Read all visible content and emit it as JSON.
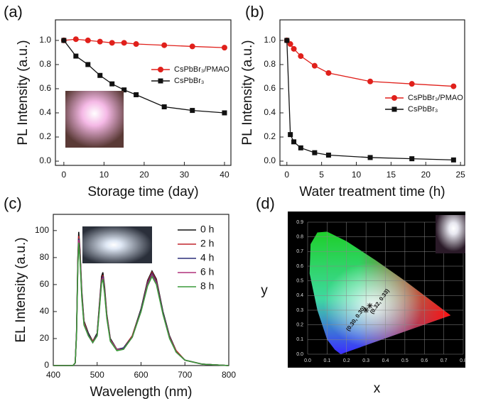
{
  "chart_data": [
    {
      "type": "line",
      "panel_label": "(a)",
      "xlabel": "Storage time (day)",
      "ylabel": "PL Intensity (a.u.)",
      "x": [
        0,
        3,
        6,
        9,
        12,
        15,
        18,
        25,
        32,
        40
      ],
      "series": [
        {
          "name": "CsPbBr₃/PMAO",
          "color": "#e0201b",
          "marker": "circle",
          "values": [
            1.0,
            1.01,
            1.0,
            0.99,
            0.98,
            0.98,
            0.97,
            0.96,
            0.95,
            0.94
          ]
        },
        {
          "name": "CsPbBr₃",
          "color": "#111111",
          "marker": "square",
          "values": [
            1.0,
            0.87,
            0.8,
            0.71,
            0.64,
            0.59,
            0.55,
            0.45,
            0.42,
            0.4
          ]
        }
      ],
      "xlim": [
        -2.1,
        41.6
      ],
      "ylim": [
        -0.035,
        1.17
      ],
      "xticks": [
        0,
        10,
        20,
        30,
        40
      ],
      "yticks": [
        {
          "value": 0,
          "label": "0.0"
        },
        0.2,
        0.4,
        0.6,
        0.8,
        {
          "value": 1,
          "label": "1.0"
        }
      ],
      "legend": "center right",
      "grid": false
    },
    {
      "type": "line",
      "panel_label": "(b)",
      "xlabel": "Water treatment time (h)",
      "ylabel": "PL Intensity (a.u.)",
      "x": [
        0,
        0.5,
        1,
        2,
        4,
        6,
        12,
        18,
        24
      ],
      "series": [
        {
          "name": "CsPbBr₃/PMAO",
          "color": "#e0201b",
          "marker": "circle",
          "values": [
            1.0,
            0.97,
            0.93,
            0.87,
            0.79,
            0.73,
            0.66,
            0.64,
            0.62
          ]
        },
        {
          "name": "CsPbBr₃",
          "color": "#111111",
          "marker": "square",
          "values": [
            1.0,
            0.22,
            0.16,
            0.11,
            0.07,
            0.05,
            0.03,
            0.02,
            0.01
          ]
        }
      ],
      "xlim": [
        -1,
        25.6
      ],
      "ylim": [
        -0.035,
        1.17
      ],
      "xticks": [
        0,
        5,
        10,
        15,
        20,
        25
      ],
      "yticks": [
        {
          "value": 0,
          "label": "0.0"
        },
        0.2,
        0.4,
        0.6,
        0.8,
        {
          "value": 1,
          "label": "1.0"
        }
      ],
      "legend": "lower right",
      "grid": false
    },
    {
      "type": "line",
      "panel_label": "(c)",
      "xlabel": "Wavelength (nm)",
      "ylabel": "EL Intensity (a.u.)",
      "x": [
        400,
        445,
        450,
        453,
        456,
        458,
        461,
        465,
        470,
        480,
        490,
        500,
        505,
        510,
        513,
        517,
        522,
        530,
        545,
        560,
        580,
        600,
        615,
        625,
        635,
        650,
        665,
        680,
        700,
        740,
        800
      ],
      "series": [
        {
          "name": "0 h",
          "color": "#111111",
          "values": [
            0,
            0,
            2,
            25,
            80,
            99,
            85,
            55,
            33,
            24,
            18,
            24,
            45,
            66,
            69,
            58,
            38,
            20,
            12,
            13,
            22,
            42,
            63,
            70,
            64,
            40,
            22,
            11,
            4,
            1,
            0
          ]
        },
        {
          "name": "2 h",
          "color": "#c0262d",
          "values": [
            0,
            0,
            2,
            24,
            78,
            96,
            83,
            53,
            32,
            23,
            18,
            23,
            44,
            64,
            67,
            56,
            37,
            19,
            12,
            13,
            22,
            41,
            62,
            69,
            63,
            39,
            21,
            11,
            4,
            1,
            0
          ]
        },
        {
          "name": "4 h",
          "color": "#2b2f7a",
          "values": [
            0,
            0,
            2,
            24,
            76,
            94,
            81,
            52,
            31,
            23,
            17,
            23,
            43,
            63,
            66,
            55,
            36,
            19,
            12,
            13,
            21,
            41,
            61,
            68,
            62,
            39,
            21,
            10,
            4,
            1,
            0
          ]
        },
        {
          "name": "6 h",
          "color": "#b0307a",
          "values": [
            0,
            0,
            2,
            23,
            75,
            93,
            80,
            51,
            31,
            22,
            17,
            22,
            42,
            62,
            65,
            54,
            36,
            19,
            12,
            12,
            21,
            40,
            60,
            67,
            61,
            38,
            21,
            10,
            4,
            1,
            0
          ]
        },
        {
          "name": "8 h",
          "color": "#3a9a3a",
          "values": [
            0,
            0,
            2,
            23,
            73,
            91,
            78,
            50,
            30,
            22,
            17,
            22,
            41,
            61,
            64,
            53,
            35,
            18,
            11,
            12,
            21,
            40,
            59,
            66,
            60,
            38,
            20,
            10,
            4,
            1,
            0
          ]
        }
      ],
      "xlim": [
        400,
        800
      ],
      "ylim": [
        0,
        112
      ],
      "xticks": [
        400,
        500,
        600,
        700,
        800
      ],
      "yticks": [
        0,
        20,
        40,
        60,
        80,
        100
      ],
      "legend": "upper right",
      "grid": false
    },
    {
      "type": "cie",
      "panel_label": "(d)",
      "xlabel": "x",
      "ylabel": "y",
      "points": {
        "x": [
          0.3,
          0.32
        ],
        "y": [
          0.3,
          0.33
        ],
        "labels": [
          "(0.30, 0.30)",
          "(0.32, 0.33)"
        ]
      },
      "xlim": [
        0,
        0.8
      ],
      "ylim": [
        0,
        0.9
      ],
      "xticks": [
        {
          "value": 0,
          "label": "0.0"
        },
        0.1,
        0.2,
        0.3,
        0.4,
        0.5,
        0.6,
        0.7,
        0.8
      ],
      "yticks": [
        {
          "value": 0,
          "label": "0.0"
        },
        0.1,
        0.2,
        0.3,
        0.4,
        0.5,
        0.6,
        0.7,
        0.8,
        0.9
      ],
      "grid": true
    }
  ]
}
